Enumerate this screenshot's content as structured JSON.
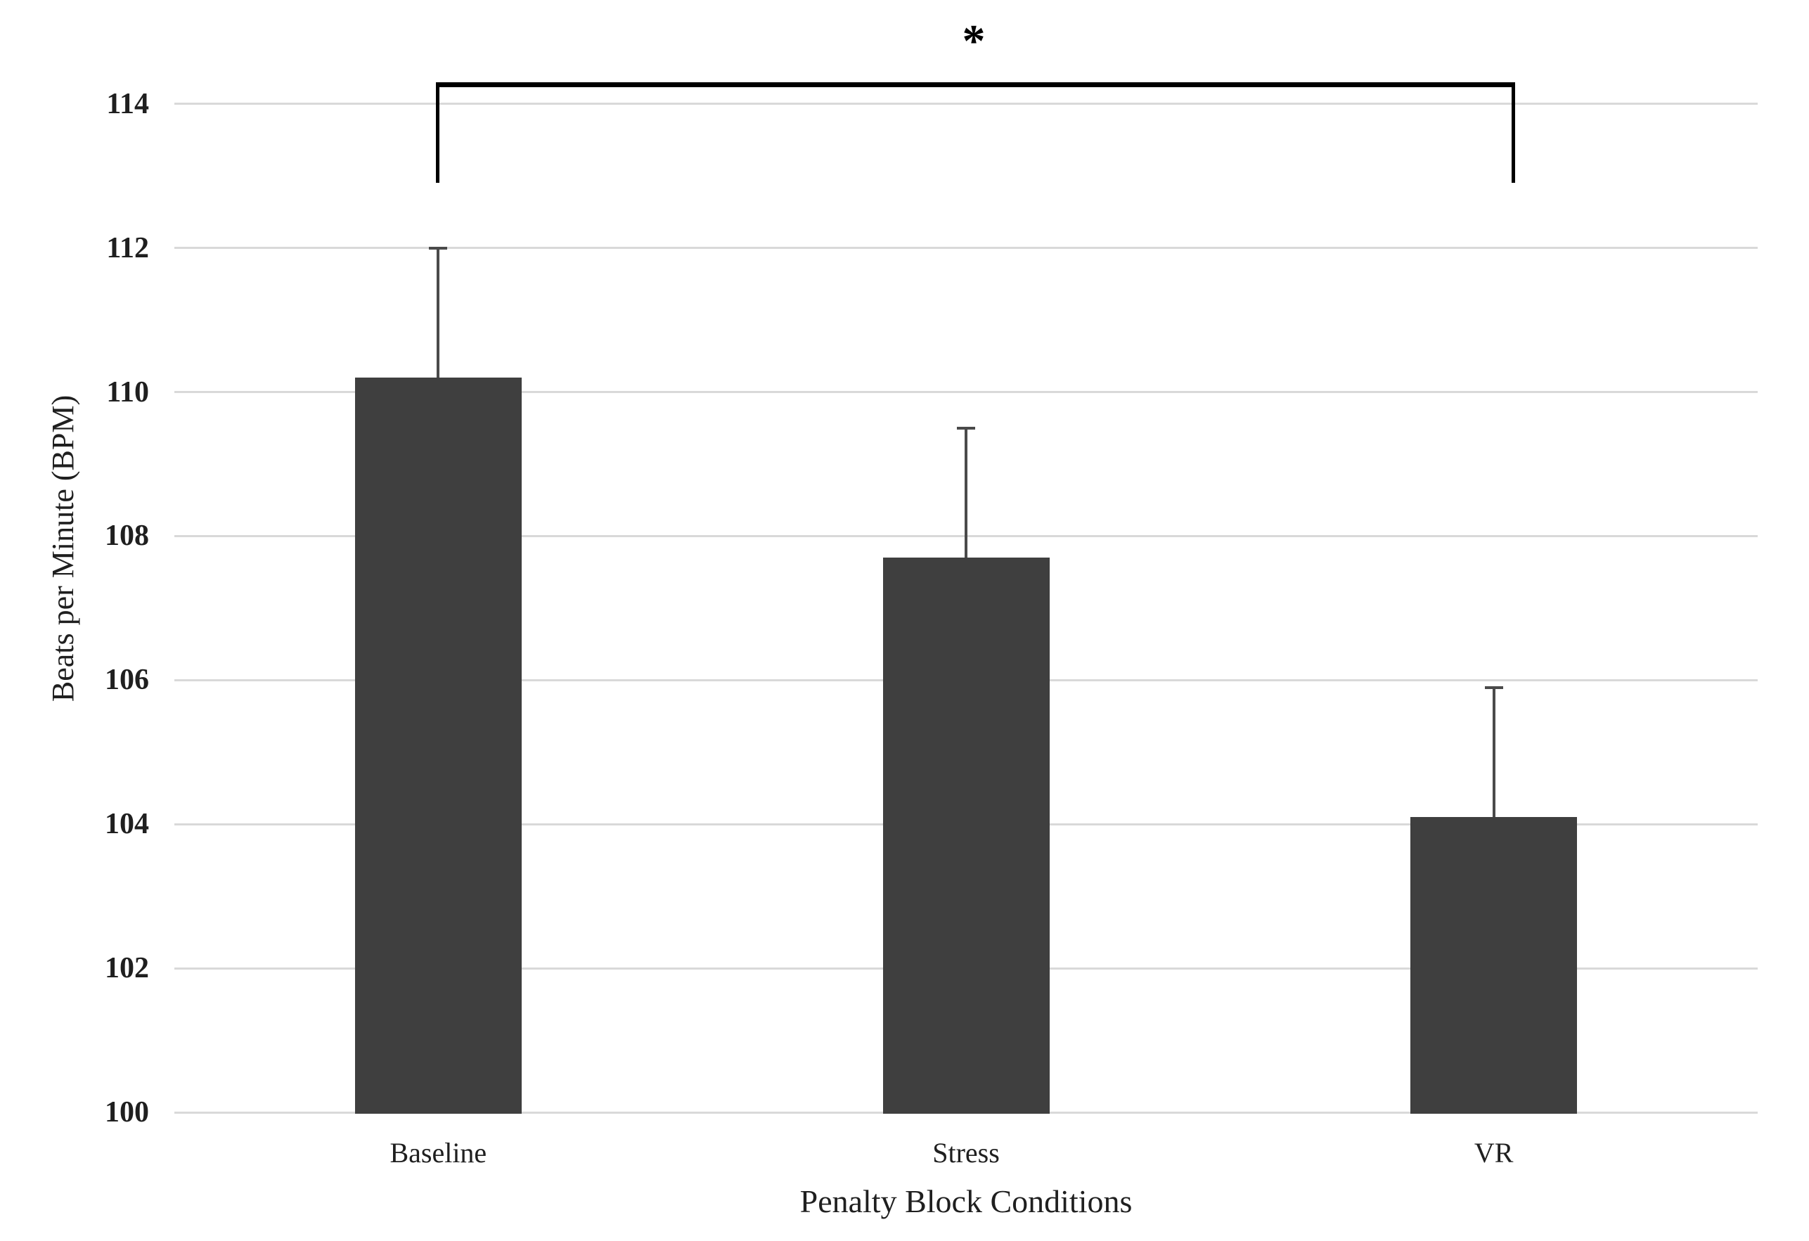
{
  "figure": {
    "background": "#FFFFFF",
    "x_axis_title": "Penalty Block Conditions",
    "y_axis_title": "Beats per Minute (BPM)"
  },
  "significance": {
    "label": "*",
    "from": "Baseline",
    "to": "VR"
  },
  "colors": {
    "bar": "#3F3F3F",
    "gridline": "#D9D9D9",
    "axis_line": "#D9D9D9",
    "error_bar": "#4A4A4A",
    "text": "#1F1F1F",
    "bracket": "#000000"
  },
  "chart_data": {
    "type": "bar",
    "categories": [
      "Baseline",
      "Stress",
      "VR"
    ],
    "values": [
      110.2,
      107.7,
      104.1
    ],
    "error_up": [
      1.8,
      1.8,
      1.8
    ],
    "title": "",
    "xlabel": "Penalty Block Conditions",
    "ylabel": "Beats per Minute (BPM)",
    "ylim": [
      100,
      114
    ],
    "yticks": [
      100,
      102,
      104,
      106,
      108,
      110,
      112,
      114
    ],
    "grid": true,
    "legend": false,
    "annotation": {
      "type": "significance-bracket",
      "between": [
        "Baseline",
        "VR"
      ],
      "label": "*"
    }
  }
}
